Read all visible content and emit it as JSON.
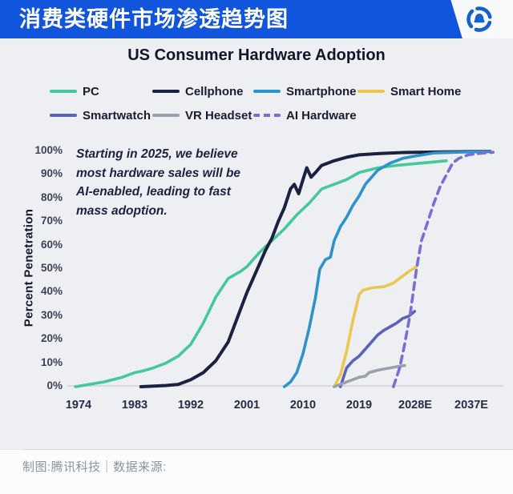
{
  "header": {
    "title": "消费类硬件市场渗透趋势图",
    "logo_icon": "tencent-tech-logo",
    "background_color": "#1155dc"
  },
  "chart_data": {
    "type": "line",
    "title": "US Consumer Hardware Adoption",
    "xlabel": "",
    "ylabel": "Percent Penetration",
    "ylim": [
      0,
      100
    ],
    "grid": false,
    "legend_position": "top",
    "x_tick_labels": [
      "1974",
      "1983",
      "1992",
      "2001",
      "2010",
      "2019",
      "2028E",
      "2037E"
    ],
    "y_tick_labels": [
      "100%",
      "90%",
      "80%",
      "70%",
      "60%",
      "50%",
      "40%",
      "30%",
      "20%",
      "10%",
      "0%"
    ],
    "annotation": "Starting in 2025, we believe most hardware sales will be AI-enabled, leading to fast mass adoption.",
    "annotation_lines": [
      "Starting in 2025, we believe",
      "most hardware sales will be",
      "AI-enabled, leading to fast",
      "mass adoption."
    ],
    "x_unit": "year",
    "y_unit": "percent",
    "series": [
      {
        "name": "PC",
        "color": "#45c89b",
        "line_style": "solid",
        "points": [
          [
            1973.5,
            0
          ],
          [
            1978,
            2
          ],
          [
            1981,
            4
          ],
          [
            1983,
            6
          ],
          [
            1984,
            6.5
          ],
          [
            1986,
            8
          ],
          [
            1988,
            10
          ],
          [
            1990,
            13
          ],
          [
            1992,
            18
          ],
          [
            1994,
            27
          ],
          [
            1996,
            38
          ],
          [
            1998,
            46
          ],
          [
            2000,
            49
          ],
          [
            2001,
            51
          ],
          [
            2003,
            57
          ],
          [
            2005,
            62
          ],
          [
            2007,
            67
          ],
          [
            2009,
            73
          ],
          [
            2011,
            78
          ],
          [
            2013,
            84
          ],
          [
            2015,
            86
          ],
          [
            2017,
            88
          ],
          [
            2019,
            91
          ],
          [
            2022,
            93
          ],
          [
            2025,
            94
          ],
          [
            2029,
            95
          ],
          [
            2033,
            96
          ]
        ]
      },
      {
        "name": "Cellphone",
        "color": "#1b2140",
        "line_style": "solid",
        "points": [
          [
            1984,
            0
          ],
          [
            1988,
            0.5
          ],
          [
            1990,
            1
          ],
          [
            1992,
            3
          ],
          [
            1994,
            6
          ],
          [
            1996,
            11
          ],
          [
            1998,
            19
          ],
          [
            2000,
            33
          ],
          [
            2001,
            40
          ],
          [
            2002,
            46
          ],
          [
            2003,
            52
          ],
          [
            2004,
            58
          ],
          [
            2005,
            63
          ],
          [
            2006,
            70
          ],
          [
            2007,
            76
          ],
          [
            2008,
            84
          ],
          [
            2008.6,
            86
          ],
          [
            2009.3,
            82
          ],
          [
            2010,
            88
          ],
          [
            2010.6,
            93
          ],
          [
            2011.3,
            89
          ],
          [
            2012,
            91
          ],
          [
            2013,
            94
          ],
          [
            2015,
            96
          ],
          [
            2017,
            97.5
          ],
          [
            2019,
            98.5
          ],
          [
            2022,
            99
          ],
          [
            2026,
            99.5
          ],
          [
            2040,
            100
          ]
        ]
      },
      {
        "name": "Smartphone",
        "color": "#2e93cb",
        "line_style": "solid",
        "points": [
          [
            2007,
            0
          ],
          [
            2008,
            2
          ],
          [
            2009,
            6
          ],
          [
            2010,
            14
          ],
          [
            2011,
            25
          ],
          [
            2012,
            38
          ],
          [
            2012.7,
            50
          ],
          [
            2013.6,
            54
          ],
          [
            2014.4,
            55
          ],
          [
            2015,
            62
          ],
          [
            2016,
            68
          ],
          [
            2017,
            72
          ],
          [
            2018,
            77
          ],
          [
            2019,
            81
          ],
          [
            2020,
            86
          ],
          [
            2021,
            89
          ],
          [
            2022,
            92
          ],
          [
            2024,
            95
          ],
          [
            2026,
            97
          ],
          [
            2028,
            98
          ],
          [
            2031,
            99.3
          ],
          [
            2040,
            100
          ]
        ]
      },
      {
        "name": "Smart Home",
        "color": "#e9c851",
        "line_style": "solid",
        "points": [
          [
            2015,
            0
          ],
          [
            2016,
            5
          ],
          [
            2017,
            15
          ],
          [
            2018,
            28
          ],
          [
            2019,
            39
          ],
          [
            2019.6,
            41
          ],
          [
            2021,
            42
          ],
          [
            2023,
            42.5
          ],
          [
            2024.5,
            44
          ],
          [
            2026,
            47
          ],
          [
            2027,
            49
          ],
          [
            2028.2,
            51
          ]
        ]
      },
      {
        "name": "Smartwatch",
        "color": "#5a63b5",
        "line_style": "solid",
        "points": [
          [
            2016,
            0
          ],
          [
            2017,
            8
          ],
          [
            2018,
            11
          ],
          [
            2019,
            13
          ],
          [
            2020,
            16
          ],
          [
            2021,
            19
          ],
          [
            2022,
            22
          ],
          [
            2023,
            24
          ],
          [
            2024,
            25.5
          ],
          [
            2025,
            27
          ],
          [
            2026,
            29
          ],
          [
            2027,
            30
          ],
          [
            2027.9,
            32
          ]
        ]
      },
      {
        "name": "VR Headset",
        "color": "#9aa0a8",
        "line_style": "solid",
        "points": [
          [
            2015,
            0
          ],
          [
            2016,
            1
          ],
          [
            2017,
            2
          ],
          [
            2018,
            3
          ],
          [
            2019,
            4
          ],
          [
            2020,
            4.5
          ],
          [
            2020.6,
            6
          ],
          [
            2022,
            7
          ],
          [
            2023,
            7.5
          ],
          [
            2024,
            8
          ],
          [
            2025.5,
            8.7
          ],
          [
            2026.3,
            9
          ]
        ]
      },
      {
        "name": "AI Hardware",
        "color": "#7a6ed6",
        "line_style": "dashed",
        "points": [
          [
            2024.5,
            0
          ],
          [
            2025.5,
            8
          ],
          [
            2026.3,
            18
          ],
          [
            2027.2,
            31
          ],
          [
            2028.2,
            50
          ],
          [
            2029,
            62
          ],
          [
            2030,
            70
          ],
          [
            2031,
            78
          ],
          [
            2032,
            85
          ],
          [
            2033,
            90
          ],
          [
            2034,
            95
          ],
          [
            2035,
            97
          ],
          [
            2036.5,
            98.5
          ],
          [
            2038.5,
            99.2
          ],
          [
            2040.5,
            99.6
          ]
        ]
      }
    ]
  },
  "footer": {
    "credit": "制图:腾讯科技｜数据来源:"
  }
}
